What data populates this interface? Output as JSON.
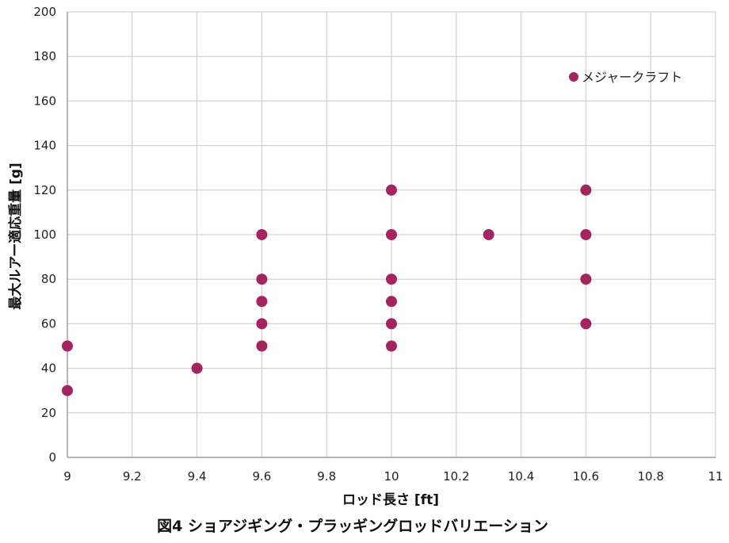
{
  "chart_data": {
    "type": "scatter",
    "xlabel": "ロッド長さ [ft]",
    "ylabel": "最大ルアー適応重量 [g]",
    "caption": "図4 ショアジギング・プラッギングロッドバリエーション",
    "xlim": [
      9,
      11
    ],
    "ylim": [
      0,
      200
    ],
    "x_ticks": [
      9,
      9.2,
      9.4,
      9.6,
      9.8,
      10,
      10.2,
      10.4,
      10.6,
      10.8,
      11
    ],
    "x_tick_labels": [
      "9",
      "9.2",
      "9.4",
      "9.6",
      "9.8",
      "10",
      "10.2",
      "10.4",
      "10.6",
      "10.8",
      "11"
    ],
    "y_ticks": [
      0,
      20,
      40,
      60,
      80,
      100,
      120,
      140,
      160,
      180,
      200
    ],
    "y_tick_labels": [
      "0",
      "20",
      "40",
      "60",
      "80",
      "100",
      "120",
      "140",
      "160",
      "180",
      "200"
    ],
    "grid": true,
    "legend_position": "top-right",
    "series": [
      {
        "name": "メジャークラフト",
        "color": "#a3245f",
        "points": [
          {
            "x": 9,
            "y": 50
          },
          {
            "x": 9,
            "y": 30
          },
          {
            "x": 9.4,
            "y": 40
          },
          {
            "x": 9.6,
            "y": 100
          },
          {
            "x": 9.6,
            "y": 80
          },
          {
            "x": 9.6,
            "y": 70
          },
          {
            "x": 9.6,
            "y": 60
          },
          {
            "x": 9.6,
            "y": 50
          },
          {
            "x": 10,
            "y": 120
          },
          {
            "x": 10,
            "y": 100
          },
          {
            "x": 10,
            "y": 80
          },
          {
            "x": 10,
            "y": 70
          },
          {
            "x": 10,
            "y": 60
          },
          {
            "x": 10,
            "y": 50
          },
          {
            "x": 10.3,
            "y": 100
          },
          {
            "x": 10.6,
            "y": 120
          },
          {
            "x": 10.6,
            "y": 100
          },
          {
            "x": 10.6,
            "y": 80
          },
          {
            "x": 10.6,
            "y": 60
          }
        ]
      }
    ]
  }
}
